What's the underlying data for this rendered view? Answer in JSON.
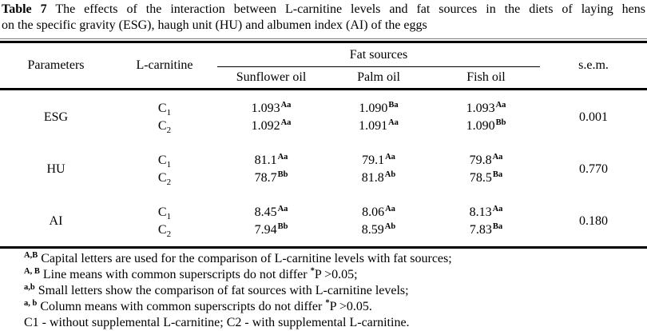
{
  "title": {
    "bold": "Table 7",
    "line1_rest": " The effects of the interaction between L-carnitine levels and fat sources in the diets of laying hens",
    "line2": "on the specific gravity (ESG), haugh unit (HU) and albumen index (AI) of the eggs"
  },
  "table": {
    "header": {
      "parameters": "Parameters",
      "l_carnitine": "L-carnitine",
      "fat_sources": "Fat sources",
      "oils": [
        "Sunflower oil",
        "Palm oil",
        "Fish oil"
      ],
      "sem": "s.e.m."
    },
    "groups": [
      {
        "parameter": "ESG",
        "sem": "0.001",
        "lines": [
          {
            "c_base": "C",
            "c_sub": "1",
            "v1": "1.093",
            "s1": "Aa",
            "v2": "1.090",
            "s2": "Ba",
            "v3": "1.093",
            "s3": "Aa"
          },
          {
            "c_base": "C",
            "c_sub": "2",
            "v1": "1.092",
            "s1": "Aa",
            "v2": "1.091",
            "s2": "Aa",
            "v3": "1.090",
            "s3": "Bb"
          }
        ]
      },
      {
        "parameter": "HU",
        "sem": "0.770",
        "lines": [
          {
            "c_base": "C",
            "c_sub": "1",
            "v1": "81.1",
            "s1": "Aa",
            "v2": "79.1",
            "s2": "Aa",
            "v3": "79.8",
            "s3": "Aa"
          },
          {
            "c_base": "C",
            "c_sub": "2",
            "v1": "78.7",
            "s1": "Bb",
            "v2": "81.8",
            "s2": "Ab",
            "v3": "78.5",
            "s3": "Ba"
          }
        ]
      },
      {
        "parameter": "AI",
        "sem": "0.180",
        "lines": [
          {
            "c_base": "C",
            "c_sub": "1",
            "v1": "8.45",
            "s1": "Aa",
            "v2": "8.06",
            "s2": "Aa",
            "v3": "8.13",
            "s3": "Aa"
          },
          {
            "c_base": "C",
            "c_sub": "2",
            "v1": "7.94",
            "s1": "Bb",
            "v2": "8.59",
            "s2": "Ab",
            "v3": "7.83",
            "s3": "Ba"
          }
        ]
      }
    ]
  },
  "footnotes": [
    {
      "sup": "A,B",
      "pre": "Capital letters are used for the comparison of L-carnitine levels with fat sources;",
      "star": "",
      "post": ""
    },
    {
      "sup": "A, B",
      "pre": "Line means with common superscripts do not differ ",
      "star": "*",
      "post": "P >0.05;"
    },
    {
      "sup": "a,b",
      "pre": "Small letters show the comparison of fat sources with L-carnitine levels;",
      "star": "",
      "post": ""
    },
    {
      "sup": "a, b",
      "pre": "Column means with common superscripts do not differ ",
      "star": "*",
      "post": "P >0.05."
    },
    {
      "sup": "",
      "pre": "C1 - without supplemental L-carnitine; C2 - with supplemental L-carnitine.",
      "star": "",
      "post": ""
    }
  ]
}
